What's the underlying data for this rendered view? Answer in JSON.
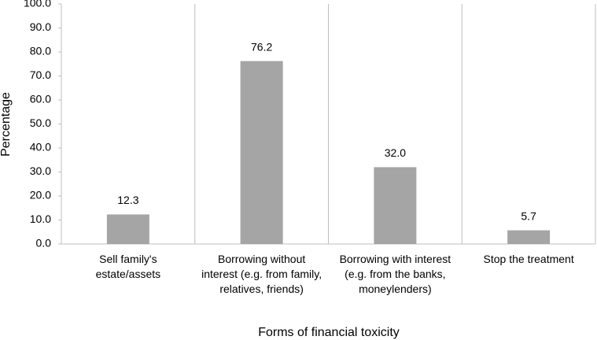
{
  "chart_data": {
    "type": "bar",
    "x_label": "Forms of financial toxicity",
    "y_label": "Percentage",
    "categories": [
      "Sell family's estate/assets",
      "Borrowing without interest (e.g. from family, relatives, friends)",
      "Borrowing with interest (e.g. from the banks, moneylenders)",
      "Stop the treatment"
    ],
    "values": [
      12.3,
      76.2,
      32.0,
      5.7
    ],
    "value_labels": [
      "12.3",
      "76.2",
      "32.0",
      "5.7"
    ],
    "color": "#a5a5a5",
    "ylim": [
      0,
      100
    ],
    "yticks": [
      {
        "value": 0,
        "label": "0.0"
      },
      {
        "value": 10,
        "label": "10.0"
      },
      {
        "value": 20,
        "label": "20.0"
      },
      {
        "value": 30,
        "label": "30.0"
      },
      {
        "value": 40,
        "label": "40.0"
      },
      {
        "value": 50,
        "label": "50.0"
      },
      {
        "value": 60,
        "label": "60.0"
      },
      {
        "value": 70,
        "label": "70.0"
      },
      {
        "value": 80,
        "label": "80.0"
      },
      {
        "value": 90,
        "label": "90.0"
      },
      {
        "value": 100,
        "label": "100.0"
      }
    ]
  }
}
